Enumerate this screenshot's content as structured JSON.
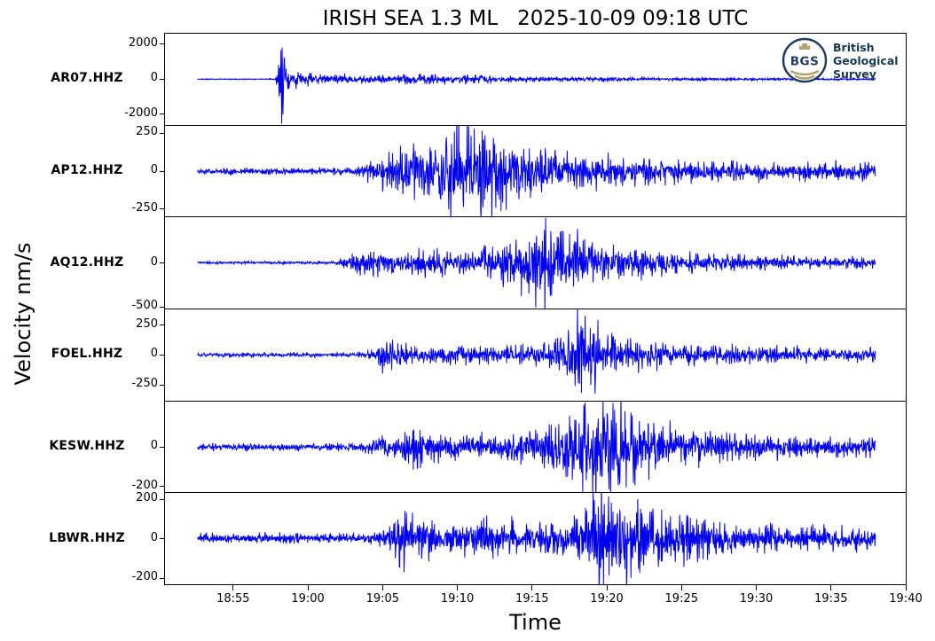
{
  "title": "IRISH SEA 1.3 ML   2025-10-09 09:18 UTC",
  "axes": {
    "xlabel": "Time",
    "ylabel": "Velocity nm/s"
  },
  "logo": {
    "badge": "BGS",
    "org": [
      "British",
      "Geological",
      "Survey"
    ]
  },
  "colors": {
    "trace": "#0000F0",
    "axis": "#000000",
    "logo_navy": "#1C3B5E",
    "logo_text": "#16384E",
    "logo_gold": "#B3A26F"
  },
  "chart_data": {
    "type": "line",
    "subtype": "multi-trace seismogram",
    "title": "IRISH SEA 1.3 ML   2025-10-09 09:18 UTC",
    "xlabel": "Time",
    "ylabel": "Velocity nm/s",
    "x_ticks": [
      "18:55",
      "19:00",
      "19:05",
      "19:10",
      "19:15",
      "19:20",
      "19:25",
      "19:30",
      "19:35",
      "19:40"
    ],
    "x_range_minutes": [
      1130.44,
      1180.0
    ],
    "data_window_frac": [
      0.044,
      0.959
    ],
    "grid": false,
    "legend": "none",
    "stations": [
      {
        "name": "AR07.HHZ",
        "ylim": 2600,
        "yticks": [
          {
            "v": 2000,
            "l": "2000"
          },
          {
            "v": 0,
            "l": "0"
          },
          {
            "v": -2000,
            "l": "-2000"
          }
        ],
        "freq_hint": 1.9,
        "seed": 7,
        "amplitude_envelope": [
          [
            0.044,
            22
          ],
          [
            0.135,
            26
          ],
          [
            0.149,
            40
          ],
          [
            0.1535,
            900
          ],
          [
            0.157,
            2500
          ],
          [
            0.162,
            1400
          ],
          [
            0.17,
            500
          ],
          [
            0.19,
            320
          ],
          [
            0.23,
            260
          ],
          [
            0.28,
            210
          ],
          [
            0.33,
            230
          ],
          [
            0.38,
            250
          ],
          [
            0.43,
            200
          ],
          [
            0.47,
            160
          ],
          [
            0.52,
            140
          ],
          [
            0.58,
            115
          ],
          [
            0.65,
            95
          ],
          [
            0.72,
            80
          ],
          [
            0.8,
            65
          ],
          [
            0.88,
            55
          ],
          [
            0.959,
            48
          ]
        ]
      },
      {
        "name": "AP12.HHZ",
        "ylim": 300,
        "yticks": [
          {
            "v": 250,
            "l": "250"
          },
          {
            "v": 0,
            "l": "0"
          },
          {
            "v": -250,
            "l": "-250"
          }
        ],
        "freq_hint": 1.5,
        "seed": 21,
        "amplitude_envelope": [
          [
            0.044,
            20
          ],
          [
            0.255,
            22
          ],
          [
            0.285,
            85
          ],
          [
            0.31,
            140
          ],
          [
            0.34,
            150
          ],
          [
            0.365,
            115
          ],
          [
            0.385,
            290
          ],
          [
            0.405,
            250
          ],
          [
            0.425,
            295
          ],
          [
            0.45,
            215
          ],
          [
            0.48,
            160
          ],
          [
            0.52,
            125
          ],
          [
            0.57,
            95
          ],
          [
            0.62,
            82
          ],
          [
            0.67,
            72
          ],
          [
            0.72,
            62
          ],
          [
            0.78,
            55
          ],
          [
            0.85,
            50
          ],
          [
            0.91,
            56
          ],
          [
            0.959,
            46
          ]
        ]
      },
      {
        "name": "AQ12.HHZ",
        "ylim": 520,
        "yticks": [
          {
            "v": 0,
            "l": "0"
          },
          {
            "v": -500,
            "l": "-500"
          }
        ],
        "freq_hint": 1.6,
        "seed": 33,
        "amplitude_envelope": [
          [
            0.044,
            12
          ],
          [
            0.23,
            13
          ],
          [
            0.252,
            95
          ],
          [
            0.28,
            130
          ],
          [
            0.315,
            105
          ],
          [
            0.35,
            140
          ],
          [
            0.39,
            125
          ],
          [
            0.43,
            170
          ],
          [
            0.465,
            240
          ],
          [
            0.49,
            380
          ],
          [
            0.503,
            560
          ],
          [
            0.515,
            420
          ],
          [
            0.54,
            310
          ],
          [
            0.57,
            230
          ],
          [
            0.61,
            165
          ],
          [
            0.66,
            125
          ],
          [
            0.72,
            95
          ],
          [
            0.8,
            75
          ],
          [
            0.88,
            62
          ],
          [
            0.959,
            55
          ]
        ]
      },
      {
        "name": "FOEL.HHZ",
        "ylim": 380,
        "yticks": [
          {
            "v": 250,
            "l": "250"
          },
          {
            "v": 0,
            "l": "0"
          },
          {
            "v": -250,
            "l": "-250"
          }
        ],
        "freq_hint": 1.45,
        "seed": 5,
        "amplitude_envelope": [
          [
            0.044,
            16
          ],
          [
            0.26,
            18
          ],
          [
            0.283,
            45
          ],
          [
            0.292,
            135
          ],
          [
            0.315,
            110
          ],
          [
            0.335,
            62
          ],
          [
            0.4,
            66
          ],
          [
            0.46,
            72
          ],
          [
            0.5,
            92
          ],
          [
            0.525,
            125
          ],
          [
            0.545,
            210
          ],
          [
            0.558,
            400
          ],
          [
            0.572,
            300
          ],
          [
            0.59,
            180
          ],
          [
            0.62,
            122
          ],
          [
            0.66,
            100
          ],
          [
            0.72,
            80
          ],
          [
            0.8,
            62
          ],
          [
            0.88,
            56
          ],
          [
            0.959,
            50
          ]
        ]
      },
      {
        "name": "KESW.HHZ",
        "ylim": 230,
        "yticks": [
          {
            "v": 0,
            "l": "0"
          },
          {
            "v": -200,
            "l": "-200"
          }
        ],
        "freq_hint": 1.6,
        "seed": 49,
        "amplitude_envelope": [
          [
            0.044,
            14
          ],
          [
            0.1,
            16
          ],
          [
            0.12,
            24
          ],
          [
            0.145,
            15
          ],
          [
            0.26,
            16
          ],
          [
            0.285,
            45
          ],
          [
            0.315,
            62
          ],
          [
            0.345,
            92
          ],
          [
            0.37,
            60
          ],
          [
            0.42,
            56
          ],
          [
            0.47,
            62
          ],
          [
            0.505,
            82
          ],
          [
            0.535,
            130
          ],
          [
            0.565,
            205
          ],
          [
            0.585,
            245
          ],
          [
            0.61,
            185
          ],
          [
            0.64,
            145
          ],
          [
            0.67,
            112
          ],
          [
            0.71,
            82
          ],
          [
            0.76,
            62
          ],
          [
            0.82,
            52
          ],
          [
            0.9,
            46
          ],
          [
            0.959,
            40
          ]
        ]
      },
      {
        "name": "LBWR.HHZ",
        "ylim": 230,
        "yticks": [
          {
            "v": 200,
            "l": "200"
          },
          {
            "v": 0,
            "l": "0"
          },
          {
            "v": -200,
            "l": "-200"
          }
        ],
        "freq_hint": 1.75,
        "seed": 61,
        "amplitude_envelope": [
          [
            0.044,
            22
          ],
          [
            0.275,
            24
          ],
          [
            0.3,
            48
          ],
          [
            0.312,
            135
          ],
          [
            0.33,
            122
          ],
          [
            0.352,
            82
          ],
          [
            0.4,
            72
          ],
          [
            0.44,
            88
          ],
          [
            0.48,
            72
          ],
          [
            0.52,
            78
          ],
          [
            0.55,
            92
          ],
          [
            0.572,
            150
          ],
          [
            0.592,
            245
          ],
          [
            0.615,
            185
          ],
          [
            0.65,
            142
          ],
          [
            0.68,
            112
          ],
          [
            0.72,
            92
          ],
          [
            0.77,
            72
          ],
          [
            0.83,
            62
          ],
          [
            0.9,
            56
          ],
          [
            0.959,
            46
          ]
        ]
      }
    ]
  }
}
